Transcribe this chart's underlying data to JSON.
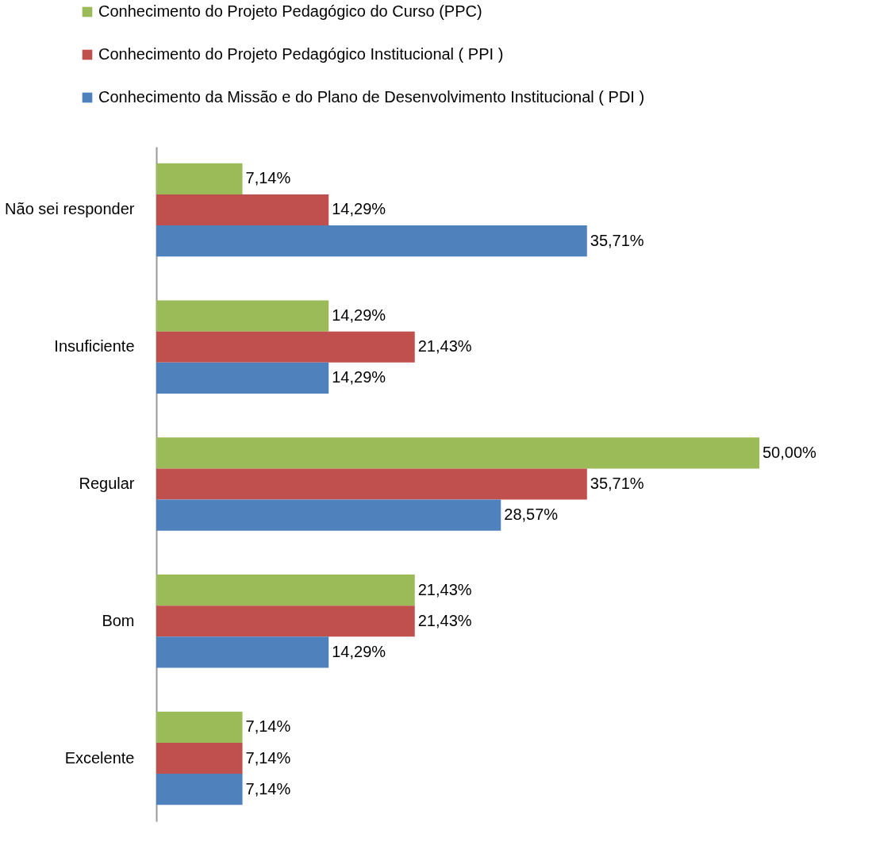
{
  "chart_data": {
    "type": "bar",
    "orientation": "horizontal",
    "categories": [
      "Não sei responder",
      "Insuficiente",
      "Regular",
      "Bom",
      "Excelente"
    ],
    "series": [
      {
        "name": "Conhecimento do Projeto Pedagógico do Curso  (PPC)",
        "color": "#9bbb59",
        "values": [
          7.14,
          14.29,
          50.0,
          21.43,
          7.14
        ],
        "value_labels": [
          "7,14%",
          "14,29%",
          "50,00%",
          "21,43%",
          "7,14%"
        ]
      },
      {
        "name": "Conhecimento do Projeto Pedagógico Institucional ( PPI  )",
        "color": "#c0504d",
        "values": [
          14.29,
          21.43,
          35.71,
          21.43,
          7.14
        ],
        "value_labels": [
          "14,29%",
          "21,43%",
          "35,71%",
          "21,43%",
          "7,14%"
        ]
      },
      {
        "name": "Conhecimento da Missão e do Plano de Desenvolvimento Institucional ( PDI )",
        "color": "#4f81bd",
        "values": [
          35.71,
          14.29,
          28.57,
          14.29,
          7.14
        ],
        "value_labels": [
          "35,71%",
          "14,29%",
          "28,57%",
          "14,29%",
          "7,14%"
        ]
      }
    ],
    "legend": "top",
    "grid": false,
    "tick_labels": "y"
  }
}
